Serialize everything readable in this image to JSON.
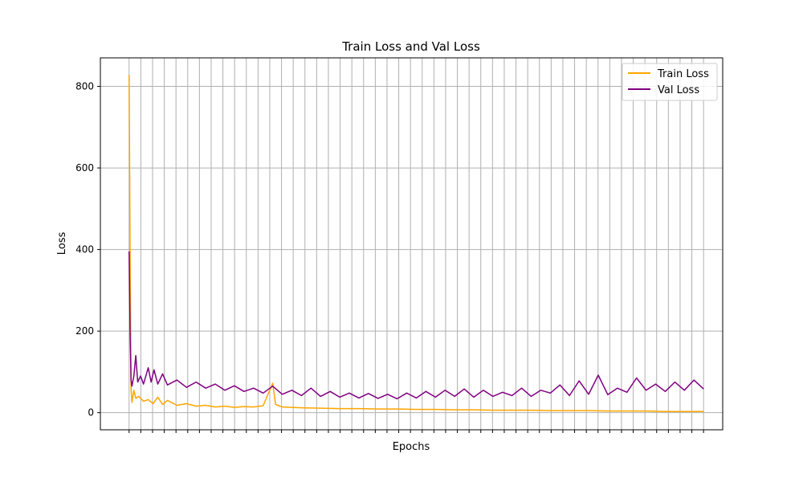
{
  "chart_data": {
    "type": "line",
    "title": "Train Loss and Val Loss",
    "xlabel": "Epochs",
    "ylabel": "Loss",
    "xlim": [
      -3,
      62
    ],
    "ylim": [
      -42,
      870
    ],
    "y_ticks": [
      0,
      200,
      400,
      600,
      800
    ],
    "y_tick_labels": [
      "0",
      "200",
      "400",
      "600",
      "800"
    ],
    "x_ticks_count": 50,
    "x_tick_labels_shown": false,
    "grid": true,
    "legend_position": "top-right",
    "series": [
      {
        "name": "Train Loss",
        "color": "#FFA500",
        "points": [
          [
            0,
            828
          ],
          [
            0.1,
            400
          ],
          [
            0.2,
            60
          ],
          [
            0.3,
            25
          ],
          [
            0.5,
            55
          ],
          [
            0.7,
            35
          ],
          [
            1,
            40
          ],
          [
            1.5,
            28
          ],
          [
            2,
            32
          ],
          [
            2.5,
            22
          ],
          [
            3,
            38
          ],
          [
            3.5,
            20
          ],
          [
            4,
            30
          ],
          [
            5,
            18
          ],
          [
            6,
            22
          ],
          [
            7,
            16
          ],
          [
            8,
            18
          ],
          [
            9,
            14
          ],
          [
            10,
            16
          ],
          [
            11,
            13
          ],
          [
            12,
            15
          ],
          [
            13,
            14
          ],
          [
            14,
            17
          ],
          [
            15,
            72
          ],
          [
            15.3,
            20
          ],
          [
            16,
            14
          ],
          [
            18,
            12
          ],
          [
            20,
            11
          ],
          [
            22,
            10
          ],
          [
            24,
            10
          ],
          [
            26,
            9
          ],
          [
            28,
            9
          ],
          [
            30,
            8
          ],
          [
            32,
            8
          ],
          [
            34,
            7
          ],
          [
            36,
            7
          ],
          [
            38,
            6
          ],
          [
            40,
            6
          ],
          [
            42,
            6
          ],
          [
            44,
            5
          ],
          [
            46,
            5
          ],
          [
            48,
            5
          ],
          [
            50,
            4
          ],
          [
            52,
            4
          ],
          [
            54,
            4
          ],
          [
            56,
            3
          ],
          [
            58,
            3
          ],
          [
            60,
            3
          ]
        ]
      },
      {
        "name": "Val Loss",
        "color": "#800080",
        "points": [
          [
            0,
            395
          ],
          [
            0.05,
            300
          ],
          [
            0.1,
            200
          ],
          [
            0.2,
            80
          ],
          [
            0.3,
            65
          ],
          [
            0.5,
            90
          ],
          [
            0.7,
            140
          ],
          [
            0.9,
            75
          ],
          [
            1.2,
            90
          ],
          [
            1.5,
            70
          ],
          [
            2,
            110
          ],
          [
            2.3,
            75
          ],
          [
            2.6,
            105
          ],
          [
            3,
            70
          ],
          [
            3.5,
            95
          ],
          [
            4,
            68
          ],
          [
            5,
            80
          ],
          [
            6,
            62
          ],
          [
            7,
            75
          ],
          [
            8,
            60
          ],
          [
            9,
            70
          ],
          [
            10,
            55
          ],
          [
            11,
            66
          ],
          [
            12,
            52
          ],
          [
            13,
            60
          ],
          [
            14,
            48
          ],
          [
            15,
            65
          ],
          [
            16,
            45
          ],
          [
            17,
            55
          ],
          [
            18,
            42
          ],
          [
            19,
            60
          ],
          [
            20,
            40
          ],
          [
            21,
            52
          ],
          [
            22,
            38
          ],
          [
            23,
            48
          ],
          [
            24,
            36
          ],
          [
            25,
            47
          ],
          [
            26,
            35
          ],
          [
            27,
            45
          ],
          [
            28,
            34
          ],
          [
            29,
            48
          ],
          [
            30,
            36
          ],
          [
            31,
            52
          ],
          [
            32,
            38
          ],
          [
            33,
            55
          ],
          [
            34,
            40
          ],
          [
            35,
            58
          ],
          [
            36,
            38
          ],
          [
            37,
            55
          ],
          [
            38,
            40
          ],
          [
            39,
            50
          ],
          [
            40,
            42
          ],
          [
            41,
            60
          ],
          [
            42,
            40
          ],
          [
            43,
            55
          ],
          [
            44,
            48
          ],
          [
            45,
            68
          ],
          [
            46,
            42
          ],
          [
            47,
            78
          ],
          [
            48,
            45
          ],
          [
            49,
            92
          ],
          [
            50,
            44
          ],
          [
            51,
            60
          ],
          [
            52,
            50
          ],
          [
            53,
            85
          ],
          [
            54,
            55
          ],
          [
            55,
            70
          ],
          [
            56,
            52
          ],
          [
            57,
            75
          ],
          [
            58,
            55
          ],
          [
            59,
            80
          ],
          [
            60,
            58
          ]
        ]
      }
    ]
  }
}
